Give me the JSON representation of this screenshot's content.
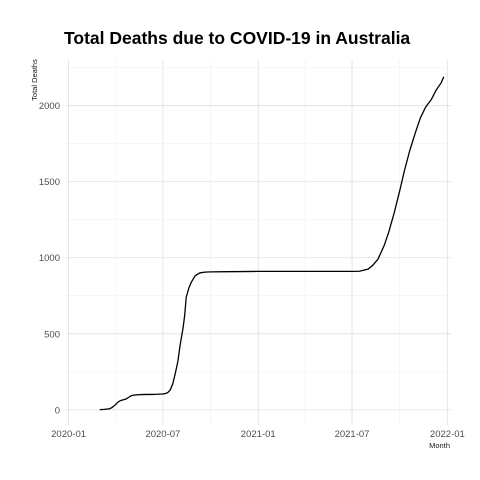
{
  "chart_data": {
    "type": "line",
    "title": "Total Deaths due to COVID-19 in Australia",
    "xlabel": "Month",
    "ylabel": "Total Deaths",
    "x_tick_labels": [
      "2020-01",
      "2020-07",
      "2021-01",
      "2021-07",
      "2022-01"
    ],
    "x_tick_dates": [
      "2020-01-01",
      "2020-07-01",
      "2021-01-01",
      "2021-07-01",
      "2022-01-01"
    ],
    "xlim": [
      "2019-12-27",
      "2022-01-08"
    ],
    "y_ticks": [
      0,
      500,
      1000,
      1500,
      2000
    ],
    "ylim": [
      -100,
      2300
    ],
    "grid": true,
    "legend": "none",
    "line_color": "#000000",
    "series": [
      {
        "x": [
          "2020-03-01",
          "2020-03-10",
          "2020-03-20",
          "2020-03-25",
          "2020-04-01",
          "2020-04-05",
          "2020-04-10",
          "2020-04-15",
          "2020-04-20",
          "2020-04-25",
          "2020-05-01",
          "2020-05-10",
          "2020-05-20",
          "2020-06-01",
          "2020-06-10",
          "2020-06-20",
          "2020-06-30",
          "2020-07-05",
          "2020-07-10",
          "2020-07-15",
          "2020-07-20",
          "2020-07-25",
          "2020-07-30",
          "2020-08-03",
          "2020-08-06",
          "2020-08-09",
          "2020-08-12",
          "2020-08-15",
          "2020-08-20",
          "2020-08-25",
          "2020-09-01",
          "2020-09-10",
          "2020-09-20",
          "2020-10-01",
          "2020-11-01",
          "2020-12-01",
          "2021-01-01",
          "2021-03-01",
          "2021-05-01",
          "2021-06-01",
          "2021-07-01",
          "2021-07-15",
          "2021-08-01",
          "2021-08-10",
          "2021-08-20",
          "2021-09-01",
          "2021-09-10",
          "2021-09-20",
          "2021-10-01",
          "2021-10-10",
          "2021-10-20",
          "2021-11-01",
          "2021-11-10",
          "2021-11-20",
          "2021-12-01",
          "2021-12-10",
          "2021-12-20",
          "2021-12-25"
        ],
        "y": [
          1,
          3,
          7,
          15,
          35,
          50,
          60,
          65,
          70,
          80,
          93,
          98,
          100,
          101,
          101,
          102,
          104,
          106,
          112,
          130,
          170,
          240,
          320,
          420,
          480,
          540,
          620,
          740,
          800,
          840,
          880,
          900,
          905,
          907,
          908,
          909,
          910,
          910,
          910,
          910,
          910,
          911,
          925,
          950,
          990,
          1080,
          1170,
          1290,
          1440,
          1570,
          1700,
          1830,
          1920,
          1990,
          2040,
          2100,
          2150,
          2190
        ]
      }
    ]
  }
}
